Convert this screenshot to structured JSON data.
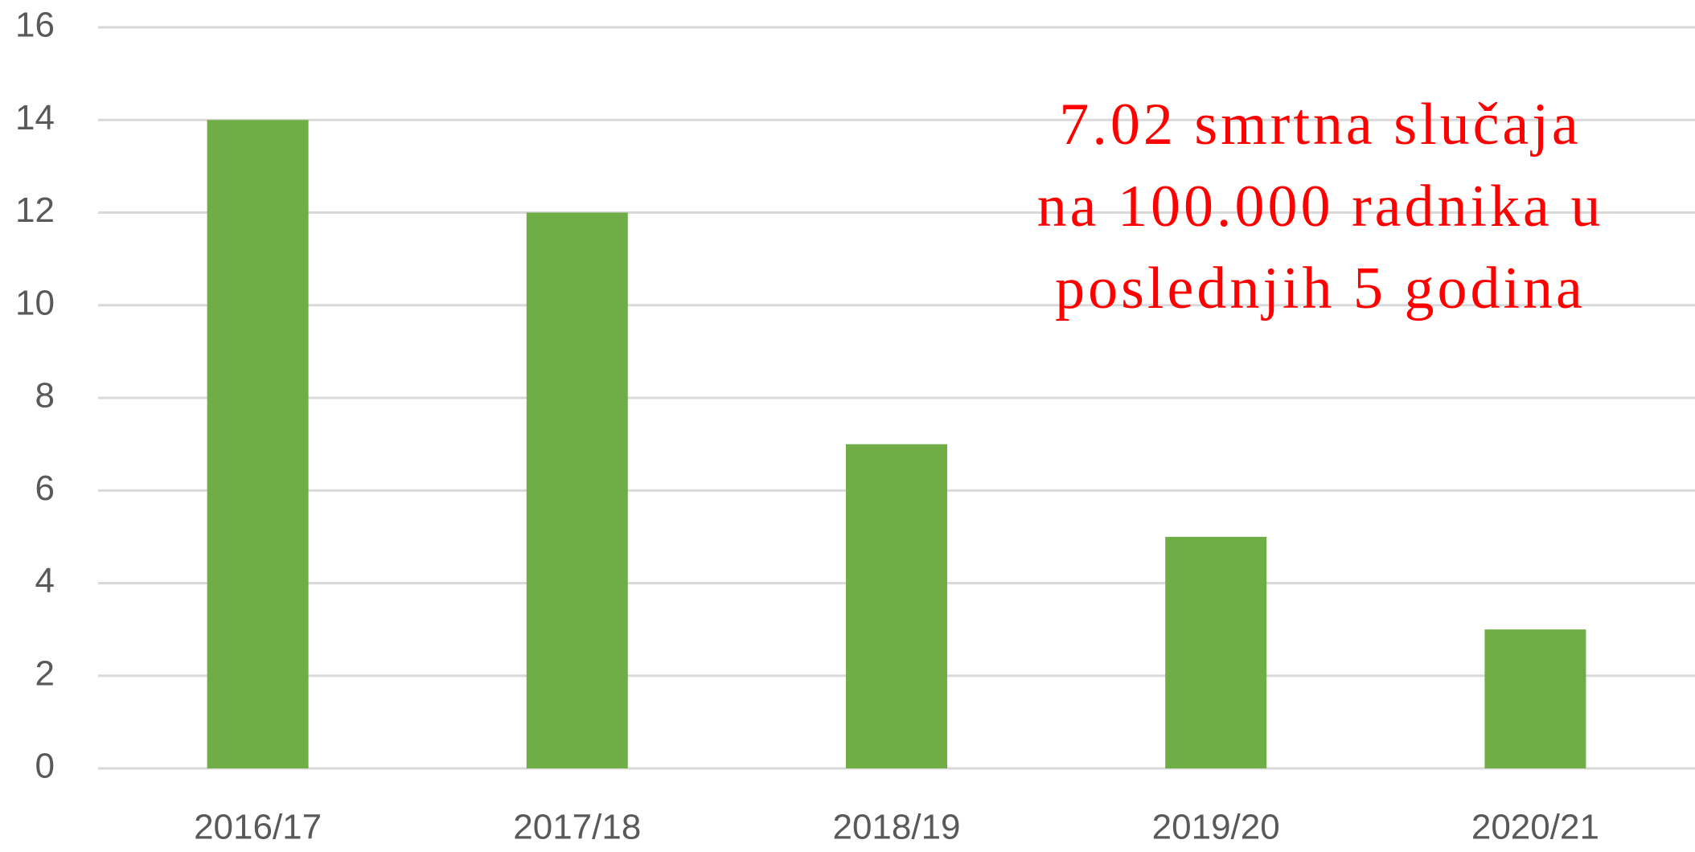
{
  "chart_data": {
    "type": "bar",
    "categories": [
      "2016/17",
      "2017/18",
      "2018/19",
      "2019/20",
      "2020/21"
    ],
    "values": [
      14,
      12,
      7,
      5,
      3
    ],
    "color": "#70ad47",
    "ylim": [
      0,
      16
    ],
    "yticks": [
      0,
      2,
      4,
      6,
      8,
      10,
      12,
      14,
      16
    ],
    "grid": true,
    "annotation": [
      "7.02 smrtna slučaja",
      "na 100.000 radnika u",
      "poslednjih 5 godina"
    ]
  }
}
